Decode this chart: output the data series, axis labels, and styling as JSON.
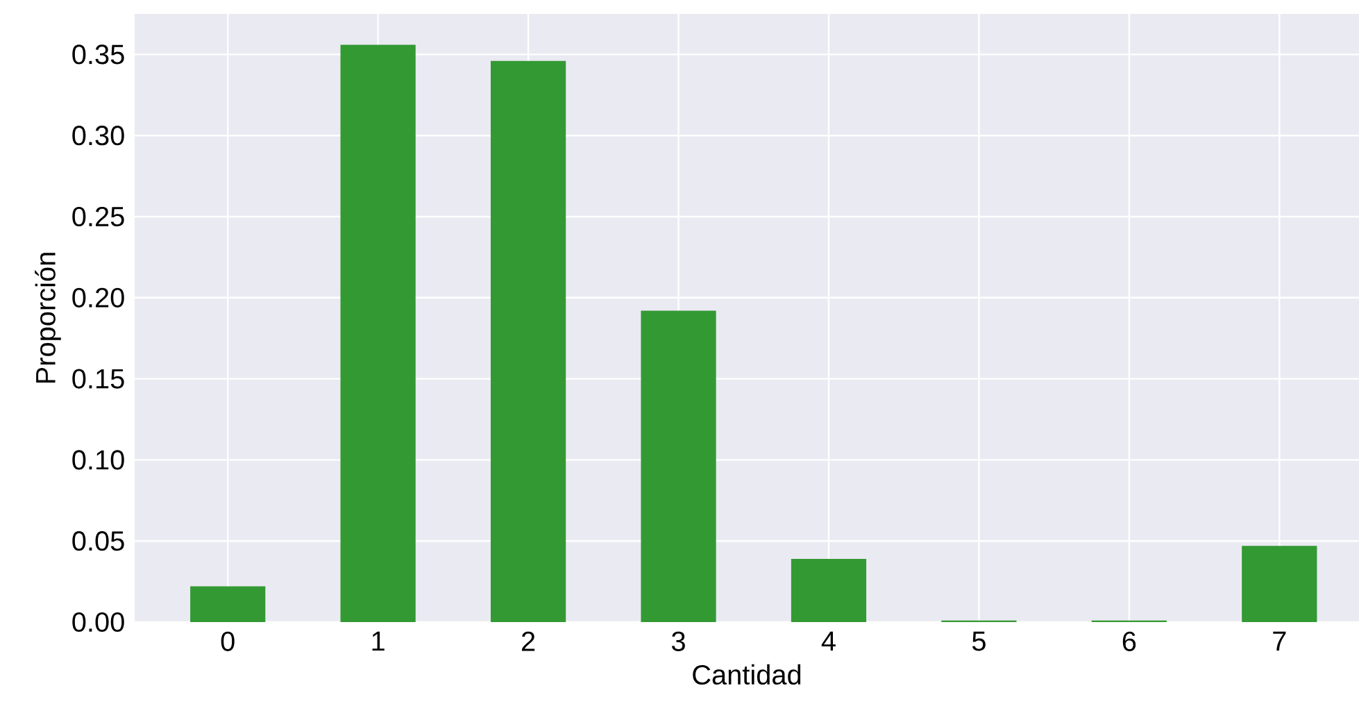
{
  "chart_data": {
    "type": "bar",
    "xlabel": "Cantidad",
    "ylabel": "Proporción",
    "categories": [
      "0",
      "1",
      "2",
      "3",
      "4",
      "5",
      "6",
      "7"
    ],
    "values": [
      0.022,
      0.356,
      0.346,
      0.192,
      0.039,
      0.001,
      0.001,
      0.047
    ],
    "color": "#339933",
    "ylim": [
      0,
      0.375
    ],
    "yticks": [
      {
        "value": 0,
        "label": "0.00"
      },
      0.05,
      {
        "value": 0.1,
        "label": "0.10"
      },
      0.15,
      {
        "value": 0.2,
        "label": "0.20"
      },
      0.25,
      {
        "value": 0.3,
        "label": "0.30"
      },
      0.35
    ],
    "grid": true
  }
}
